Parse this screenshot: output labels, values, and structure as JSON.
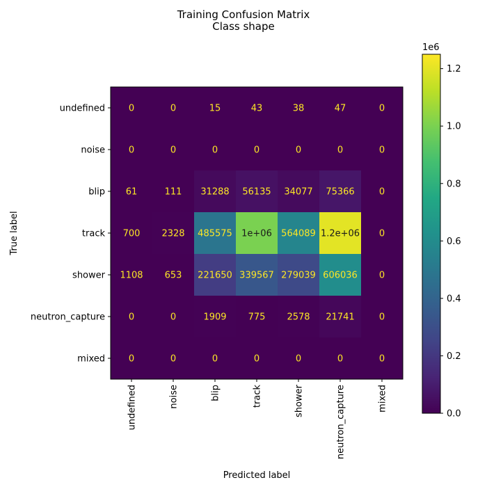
{
  "chart_data": {
    "type": "heatmap",
    "title_line1": "Training Confusion Matrix",
    "title_line2": "Class shape",
    "xlabel": "Predicted label",
    "ylabel": "True label",
    "x_categories": [
      "undefined",
      "noise",
      "blip",
      "track",
      "shower",
      "neutron_capture",
      "mixed"
    ],
    "y_categories": [
      "undefined",
      "noise",
      "blip",
      "track",
      "shower",
      "neutron_capture",
      "mixed"
    ],
    "values": [
      [
        0,
        0,
        15,
        43,
        38,
        47,
        0
      ],
      [
        0,
        0,
        0,
        0,
        0,
        0,
        0
      ],
      [
        61,
        111,
        31288,
        56135,
        34077,
        75366,
        0
      ],
      [
        700,
        2328,
        485575,
        1000000,
        564089,
        1200000,
        0
      ],
      [
        1108,
        653,
        221650,
        339567,
        279039,
        606036,
        0
      ],
      [
        0,
        0,
        1909,
        775,
        2578,
        21741,
        0
      ],
      [
        0,
        0,
        0,
        0,
        0,
        0,
        0
      ]
    ],
    "cell_labels": [
      [
        "0",
        "0",
        "15",
        "43",
        "38",
        "47",
        "0"
      ],
      [
        "0",
        "0",
        "0",
        "0",
        "0",
        "0",
        "0"
      ],
      [
        "61",
        "111",
        "31288",
        "56135",
        "34077",
        "75366",
        "0"
      ],
      [
        "700",
        "2328",
        "485575",
        "1e+06",
        "564089",
        "1.2e+06",
        "0"
      ],
      [
        "1108",
        "653",
        "221650",
        "339567",
        "279039",
        "606036",
        "0"
      ],
      [
        "0",
        "0",
        "1909",
        "775",
        "2578",
        "21741",
        "0"
      ],
      [
        "0",
        "0",
        "0",
        "0",
        "0",
        "0",
        "0"
      ]
    ],
    "colormap": "viridis",
    "color_range": [
      0,
      1250000
    ],
    "colorbar": {
      "ticks": [
        0,
        200000,
        400000,
        600000,
        800000,
        1000000,
        1200000
      ],
      "tick_labels": [
        "0.0",
        "0.2",
        "0.4",
        "0.6",
        "0.8",
        "1.0",
        "1.2"
      ],
      "offset_label": "1e6"
    },
    "text_colors": {
      "dark_cell": "#fde725",
      "light_cell": "#1a1a1a"
    },
    "grid": false
  }
}
